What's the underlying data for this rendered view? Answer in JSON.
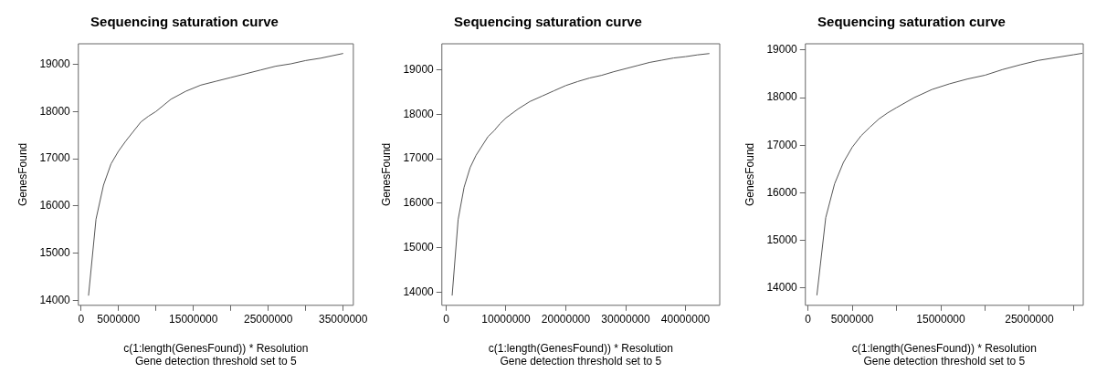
{
  "chart_data": [
    {
      "type": "line",
      "title": "Sequencing saturation curve",
      "xlabel": "c(1:length(GenesFound)) * Resolution",
      "ylabel": "GenesFound",
      "annotations": [
        "Gene detection threshold set to 5"
      ],
      "color": "#555555",
      "grid": false,
      "legend": false,
      "marker": "none",
      "x": [
        1000000,
        2000000,
        3000000,
        4000000,
        5000000,
        6000000,
        7000000,
        8000000,
        9000000,
        10000000,
        12000000,
        14000000,
        16000000,
        18000000,
        20000000,
        22000000,
        24000000,
        26000000,
        28000000,
        30000000,
        32000000,
        35000000
      ],
      "values": [
        14100,
        15720,
        16440,
        16890,
        17160,
        17380,
        17580,
        17780,
        17900,
        18000,
        18260,
        18430,
        18560,
        18640,
        18720,
        18800,
        18880,
        18960,
        19010,
        19080,
        19130,
        19230
      ],
      "xlim": [
        -360000,
        36360000
      ],
      "ylim": [
        13895,
        19435
      ],
      "xticks": [
        0,
        5000000,
        {
          "value": 10000000,
          "label": null
        },
        15000000,
        {
          "value": 20000000,
          "label": null
        },
        25000000,
        {
          "value": 30000000,
          "label": null
        },
        35000000
      ],
      "yticks": [
        14000,
        15000,
        16000,
        17000,
        18000,
        19000
      ]
    },
    {
      "type": "line",
      "title": "Sequencing saturation curve",
      "xlabel": "c(1:length(GenesFound)) * Resolution",
      "ylabel": "GenesFound",
      "annotations": [
        "Gene detection threshold set to 5"
      ],
      "color": "#555555",
      "grid": false,
      "legend": false,
      "marker": "none",
      "x": [
        1000000,
        2000000,
        3000000,
        4000000,
        5000000,
        6000000,
        7000000,
        8000000,
        9000000,
        10000000,
        12000000,
        14000000,
        16000000,
        18000000,
        20000000,
        22000000,
        24000000,
        26000000,
        28000000,
        30000000,
        32000000,
        34000000,
        36000000,
        38000000,
        40000000,
        42000000,
        44000000
      ],
      "values": [
        13920,
        15630,
        16360,
        16800,
        17080,
        17290,
        17500,
        17630,
        17790,
        17920,
        18120,
        18290,
        18410,
        18530,
        18650,
        18740,
        18820,
        18880,
        18960,
        19030,
        19100,
        19170,
        19220,
        19270,
        19300,
        19340,
        19370
      ],
      "xlim": [
        -720000,
        45720000
      ],
      "ylim": [
        13700,
        19590
      ],
      "xticks": [
        0,
        10000000,
        20000000,
        30000000,
        40000000
      ],
      "yticks": [
        14000,
        15000,
        16000,
        17000,
        18000,
        19000
      ]
    },
    {
      "type": "line",
      "title": "Sequencing saturation curve",
      "xlabel": "c(1:length(GenesFound)) * Resolution",
      "ylabel": "GenesFound",
      "annotations": [
        "Gene detection threshold set to 5"
      ],
      "color": "#555555",
      "grid": false,
      "legend": false,
      "marker": "none",
      "x": [
        1000000,
        2000000,
        3000000,
        4000000,
        5000000,
        6000000,
        7000000,
        8000000,
        9000000,
        10000000,
        12000000,
        14000000,
        16000000,
        18000000,
        20000000,
        22000000,
        24000000,
        26000000,
        28000000,
        30000000,
        31000000
      ],
      "values": [
        13850,
        15480,
        16190,
        16640,
        16960,
        17200,
        17380,
        17550,
        17680,
        17790,
        18000,
        18170,
        18290,
        18390,
        18470,
        18590,
        18690,
        18780,
        18840,
        18900,
        18930
      ],
      "xlim": [
        -300000,
        31100000
      ],
      "ylim": [
        13640,
        19130
      ],
      "xticks": [
        0,
        5000000,
        {
          "value": 10000000,
          "label": null
        },
        15000000,
        {
          "value": 20000000,
          "label": null
        },
        25000000,
        {
          "value": 30000000,
          "label": null
        }
      ],
      "yticks": [
        14000,
        15000,
        16000,
        17000,
        18000,
        19000
      ]
    }
  ]
}
